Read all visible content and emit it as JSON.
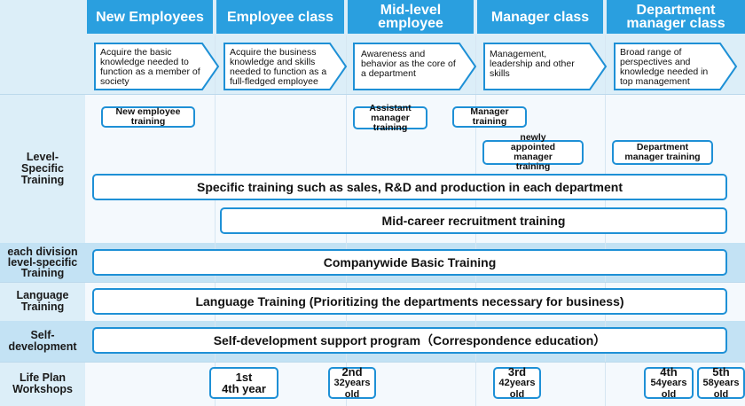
{
  "columns": [
    "New Employees",
    "Employee class",
    "Mid-level employee",
    "Manager class",
    "Department manager class"
  ],
  "descriptions": [
    "Acquire the basic knowledge needed to function as a member of society",
    "Acquire the business knowledge and skills needed to function as a full-fledged employee",
    "Awareness and behavior as the core of a department",
    "Management, leadership and other skills",
    "Broad range of perspectives and knowledge needed in top management"
  ],
  "row_labels": {
    "level_specific": "Level-Specific Training",
    "division": "each division level-specific Training",
    "language": "Language Training",
    "self_dev": "Self-development",
    "life_plan": "Life Plan Workshops"
  },
  "level_boxes": {
    "new_employee": "New employee training",
    "assistant_manager": "Assistant manager training",
    "manager": "Manager training",
    "newly_appointed": "newly appointed manager training",
    "dept_manager": "Department manager training"
  },
  "bars": {
    "specific": "Specific training such as sales, R&D and production in each department",
    "mid_career": "Mid-career recruitment training",
    "companywide": "Companywide Basic Training",
    "language": "Language Training (Prioritizing the departments necessary for business)",
    "self_dev": "Self-development support program（Correspondence education）"
  },
  "workshops": [
    {
      "title": "1st",
      "sub": "4th year"
    },
    {
      "title": "2nd",
      "sub": "32years old"
    },
    {
      "title": "3rd",
      "sub": "42years old"
    },
    {
      "title": "4th",
      "sub": "54years old"
    },
    {
      "title": "5th",
      "sub": "58years old"
    }
  ]
}
